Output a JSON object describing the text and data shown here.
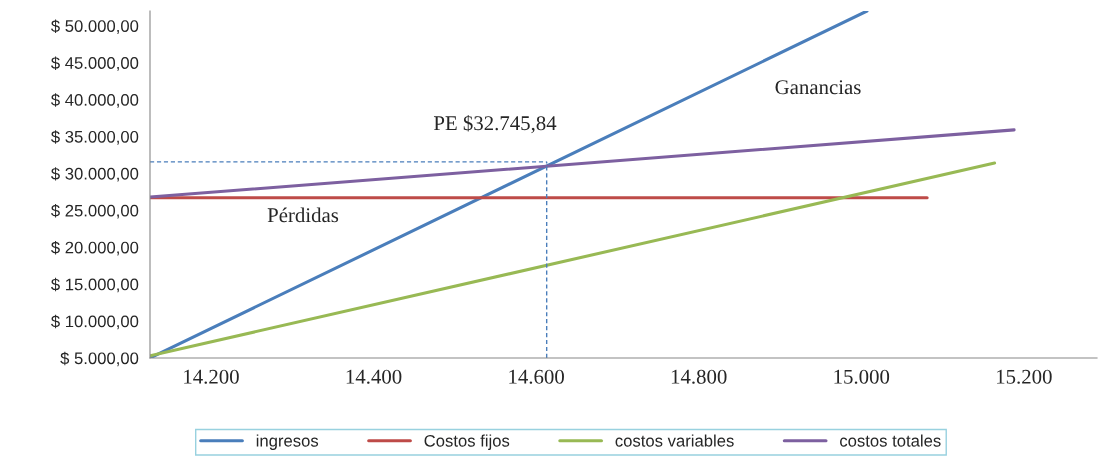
{
  "chart_data": {
    "type": "line",
    "xlim": [
      14125,
      15290
    ],
    "ylim": [
      5000,
      52000
    ],
    "xticks": [
      {
        "value": 14200,
        "label": "14.200"
      },
      {
        "value": 14400,
        "label": "14.400"
      },
      {
        "value": 14600,
        "label": "14.600"
      },
      {
        "value": 14800,
        "label": "14.800"
      },
      {
        "value": 15000,
        "label": "15.000"
      },
      {
        "value": 15200,
        "label": "15.200"
      }
    ],
    "yticks": [
      {
        "value": 5000,
        "label": "$ 5.000,00"
      },
      {
        "value": 10000,
        "label": "$ 10.000,00"
      },
      {
        "value": 15000,
        "label": "$ 15.000,00"
      },
      {
        "value": 20000,
        "label": "$ 20.000,00"
      },
      {
        "value": 25000,
        "label": "$ 25.000,00"
      },
      {
        "value": 30000,
        "label": "$ 30.000,00"
      },
      {
        "value": 35000,
        "label": "$ 35.000,00"
      },
      {
        "value": 40000,
        "label": "$ 40.000,00"
      },
      {
        "value": 45000,
        "label": "$ 45.000,00"
      },
      {
        "value": 50000,
        "label": "$ 50.000,00"
      }
    ],
    "series": [
      {
        "name": "ingresos",
        "color": "#4a7ebb",
        "x": [
          14125,
          15007
        ],
        "values": [
          5000,
          52000
        ]
      },
      {
        "name": "Costos fijos",
        "color": "#be4b48",
        "x": [
          14125,
          15081
        ],
        "values": [
          26700,
          26700
        ]
      },
      {
        "name": "costos variables",
        "color": "#98b954",
        "x": [
          14125,
          15164
        ],
        "values": [
          5300,
          31400
        ]
      },
      {
        "name": "costos totales",
        "color": "#7d60a0",
        "x": [
          14125,
          15188
        ],
        "values": [
          26800,
          35900
        ]
      }
    ],
    "ref_lines": [
      {
        "axis": "y",
        "value": 31570,
        "color": "#4a7ebb",
        "line_style": "dashed"
      },
      {
        "axis": "x",
        "value": 14613,
        "color": "#4a7ebb",
        "line_style": "dashed"
      }
    ],
    "annotations": [
      "PE $32.745,84",
      "Ganancias",
      "Pérdidas"
    ],
    "legend": "bottom",
    "grid": false,
    "marker": "none",
    "line_style": "solid"
  }
}
